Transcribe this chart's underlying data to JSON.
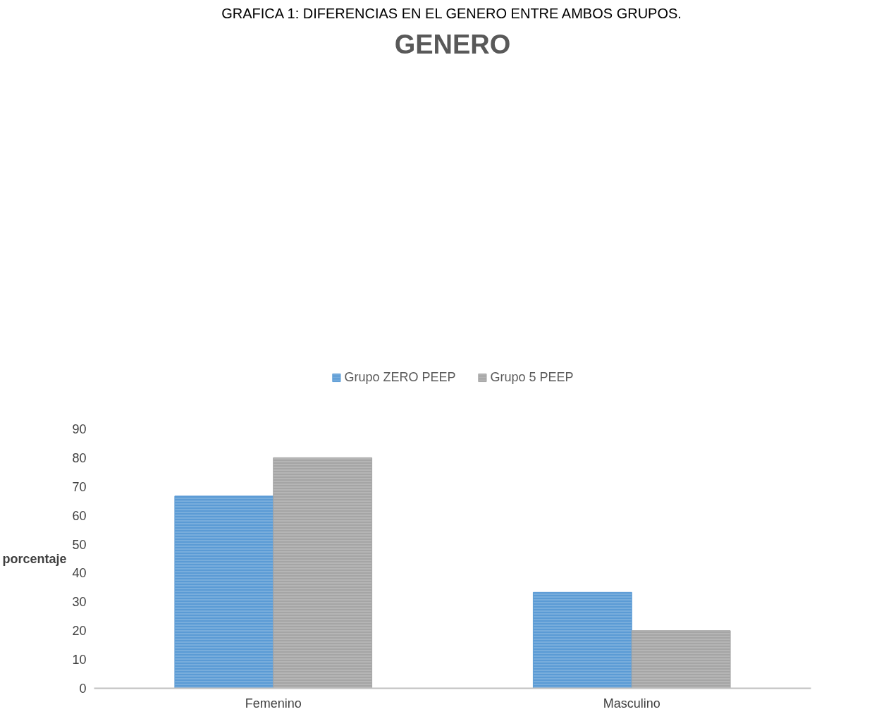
{
  "chart_data": {
    "type": "bar",
    "title": "GENERO",
    "ylabel": "porcentaje",
    "annotations": [
      "GRAFICA 1: DIFERENCIAS EN EL GENERO ENTRE AMBOS GRUPOS."
    ],
    "categories": [
      "Femenino",
      "Masculino"
    ],
    "series": [
      {
        "name": "Grupo ZERO PEEP",
        "color": "#5b9bd5",
        "values": [
          66.7,
          33.3
        ]
      },
      {
        "name": "Grupo 5 PEEP",
        "color": "#a5a5a5",
        "values": [
          80,
          20
        ]
      }
    ],
    "ylim": [
      0,
      90
    ],
    "yticks": [
      0,
      10,
      20,
      30,
      40,
      50,
      60,
      70,
      80,
      90
    ],
    "grid": false,
    "legend": "top"
  }
}
